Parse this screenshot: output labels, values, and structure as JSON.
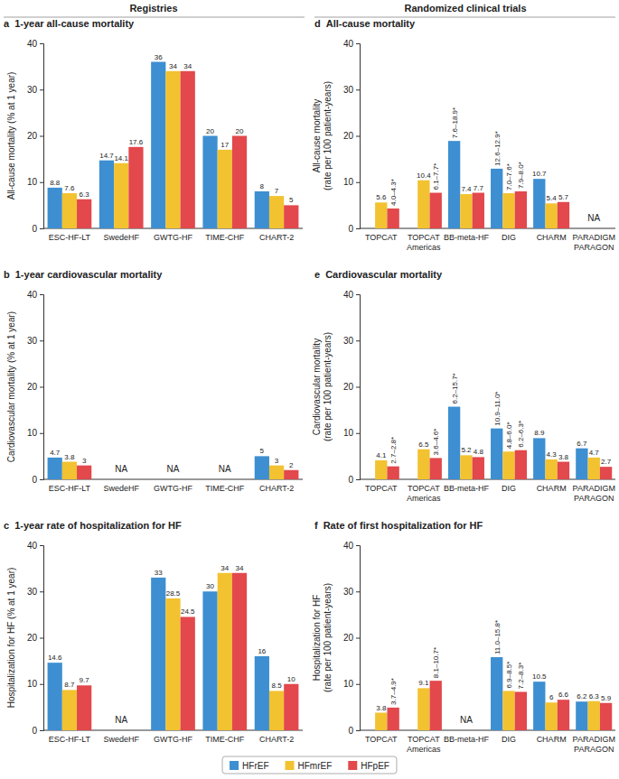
{
  "headers": [
    "Registries",
    "Randomized clinical trials"
  ],
  "chart_data": [
    {
      "type": "bar",
      "label": "a",
      "title": "1-year all-cause mortality",
      "y_label": [
        "All-cause mortality (% at 1 year)"
      ],
      "categories": [
        "ESC-HF-LT",
        "SwedeHF",
        "GWTG-HF",
        "TIME-CHF",
        "CHART-2"
      ],
      "series": [
        {
          "name": "HFrEF",
          "color": "#3d8fd1",
          "values": [
            8.8,
            14.7,
            36,
            20,
            8
          ]
        },
        {
          "name": "HFmrEF",
          "color": "#f2c230",
          "values": [
            7.6,
            14.1,
            34,
            17,
            7
          ]
        },
        {
          "name": "HFpEF",
          "color": "#e2484c",
          "values": [
            6.3,
            17.6,
            34,
            20,
            5
          ]
        }
      ],
      "ylim": [
        0,
        40
      ],
      "yticks": [
        0,
        10,
        20,
        30,
        40
      ],
      "data_labels": true,
      "legend": "bottom"
    },
    {
      "type": "bar",
      "label": "b",
      "title": "1-year cardiovascular mortality",
      "y_label": [
        "Cardiovascular mortality (% at 1 year)"
      ],
      "categories": [
        "ESC-HF-LT",
        "SwedeHF",
        "GWTG-HF",
        "TIME-CHF",
        "CHART-2"
      ],
      "series": [
        {
          "color": "#3d8fd1",
          "values": [
            4.7,
            null,
            null,
            null,
            5
          ]
        },
        {
          "color": "#f2c230",
          "values": [
            3.8,
            null,
            null,
            null,
            3
          ]
        },
        {
          "color": "#e2484c",
          "values": [
            3,
            null,
            null,
            null,
            2
          ]
        }
      ],
      "annotations": [
        {
          "x": "SwedeHF",
          "text": "NA"
        },
        {
          "x": "GWTG-HF",
          "text": "NA"
        },
        {
          "x": "TIME-CHF",
          "text": "NA"
        }
      ],
      "ylim": [
        0,
        40
      ],
      "yticks": [
        0,
        10,
        20,
        30,
        40
      ],
      "data_labels": true
    },
    {
      "type": "bar",
      "label": "c",
      "title": "1-year rate of hospitalization for HF",
      "y_label": [
        "Hospitalization for HF (% at 1 year)"
      ],
      "categories": [
        "ESC-HF-LT",
        "SwedeHF",
        "GWTG-HF",
        "TIME-CHF",
        "CHART-2"
      ],
      "series": [
        {
          "color": "#3d8fd1",
          "values": [
            14.6,
            null,
            33,
            30,
            16
          ]
        },
        {
          "color": "#f2c230",
          "values": [
            8.7,
            null,
            28.5,
            34,
            8.5
          ]
        },
        {
          "color": "#e2484c",
          "values": [
            9.7,
            null,
            24.5,
            34,
            10
          ]
        }
      ],
      "annotations": [
        {
          "x": "SwedeHF",
          "text": "NA"
        }
      ],
      "ylim": [
        0,
        40
      ],
      "yticks": [
        0,
        10,
        20,
        30,
        40
      ],
      "data_labels": true
    },
    {
      "type": "bar",
      "label": "d",
      "title": "All-cause mortality",
      "y_label": [
        "All-cause mortality",
        "(rate per 100 patient-years)"
      ],
      "categories": [
        "TOPCAT",
        "TOPCAT\nAmericas",
        "BB-meta-HF",
        "DIG",
        "CHARM",
        "PARADIGM\nPARAGON"
      ],
      "series": [
        {
          "color": "#3d8fd1",
          "values": [
            null,
            null,
            18.9,
            12.9,
            10.7,
            null
          ],
          "value_labels": [
            null,
            null,
            "7.6–18.9*",
            "12.6–12.9*",
            "10.7",
            null
          ]
        },
        {
          "color": "#f2c230",
          "values": [
            5.6,
            10.4,
            7.4,
            7.6,
            5.4,
            null
          ],
          "value_labels": [
            "5.6",
            "10.4",
            "7.4",
            "7.0–7.6*",
            "5.4",
            null
          ]
        },
        {
          "color": "#e2484c",
          "values": [
            4.3,
            7.7,
            7.7,
            8.0,
            5.7,
            null
          ],
          "value_labels": [
            "4.0–4.3*",
            "6.1–7.7*",
            "7.7",
            "7.9–8.0*",
            "5.7",
            null
          ]
        }
      ],
      "annotations": [
        {
          "x": "PARADIGM\nPARAGON",
          "text": "NA"
        }
      ],
      "ylim": [
        0,
        40
      ],
      "yticks": [
        0,
        10,
        20,
        30,
        40
      ],
      "data_labels": true
    },
    {
      "type": "bar",
      "label": "e",
      "title": "Cardiovascular mortality",
      "y_label": [
        "Cardiovascular mortality",
        "(rate per 100 patient-years)"
      ],
      "categories": [
        "TOPCAT",
        "TOPCAT\nAmericas",
        "BB-meta-HF",
        "DIG",
        "CHARM",
        "PARADIGM\nPARAGON"
      ],
      "series": [
        {
          "color": "#3d8fd1",
          "values": [
            null,
            null,
            15.7,
            11.0,
            8.9,
            6.7
          ],
          "value_labels": [
            null,
            null,
            "6.2–15.7*",
            "10.9–11.0*",
            "8.9",
            "6.7"
          ]
        },
        {
          "color": "#f2c230",
          "values": [
            4.1,
            6.5,
            5.2,
            6.0,
            4.3,
            4.7
          ],
          "value_labels": [
            "4.1",
            "6.5",
            "5.2",
            "4.8–6.0*",
            "4.3",
            "4.7"
          ]
        },
        {
          "color": "#e2484c",
          "values": [
            2.8,
            4.6,
            4.8,
            6.3,
            3.8,
            2.7
          ],
          "value_labels": [
            "2.7–2.8*",
            "3.6–4.6*",
            "4.8",
            "6.2–6.3*",
            "3.8",
            "2.7"
          ]
        }
      ],
      "ylim": [
        0,
        40
      ],
      "yticks": [
        0,
        10,
        20,
        30,
        40
      ],
      "data_labels": true
    },
    {
      "type": "bar",
      "label": "f",
      "title": "Rate of first hospitalization for HF",
      "y_label": [
        "Hospitalization for HF",
        "(rate per 100 patient-years)"
      ],
      "categories": [
        "TOPCAT",
        "TOPCAT\nAmericas",
        "BB-meta-HF",
        "DIG",
        "CHARM",
        "PARADIGM\nPARAGON"
      ],
      "series": [
        {
          "color": "#3d8fd1",
          "values": [
            null,
            null,
            null,
            15.8,
            10.5,
            6.2
          ],
          "value_labels": [
            null,
            null,
            null,
            "11.0–15.8*",
            "10.5",
            "6.2"
          ]
        },
        {
          "color": "#f2c230",
          "values": [
            3.8,
            9.1,
            null,
            8.5,
            6,
            6.3
          ],
          "value_labels": [
            "3.8",
            "9.1",
            null,
            "6.9–8.5*",
            "6",
            "6.3"
          ]
        },
        {
          "color": "#e2484c",
          "values": [
            4.9,
            10.7,
            null,
            8.3,
            6.6,
            5.9
          ],
          "value_labels": [
            "3.7–4.9*",
            "8.1–10.7*",
            null,
            "7.2–8.3*",
            "6.6",
            "5.9"
          ]
        }
      ],
      "annotations": [
        {
          "x": "BB-meta-HF",
          "text": "NA"
        }
      ],
      "ylim": [
        0,
        40
      ],
      "yticks": [
        0,
        10,
        20,
        30,
        40
      ],
      "data_labels": true
    }
  ]
}
